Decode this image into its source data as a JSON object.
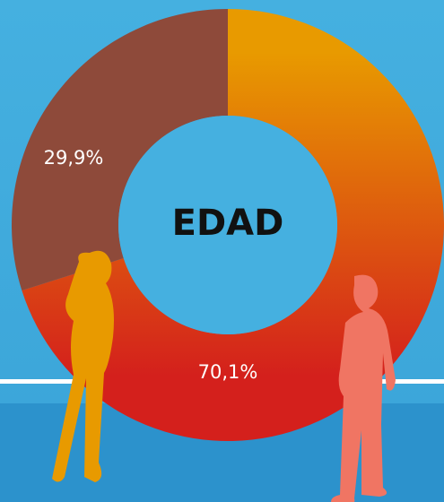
{
  "chart_data": {
    "type": "pie",
    "donut": true,
    "center_label": "EDAD",
    "values": [
      70.1,
      29.9
    ],
    "value_labels": [
      "70,1%",
      "29,9%"
    ],
    "colors": [
      "#e89a00",
      "#8e4a3a"
    ]
  }
}
